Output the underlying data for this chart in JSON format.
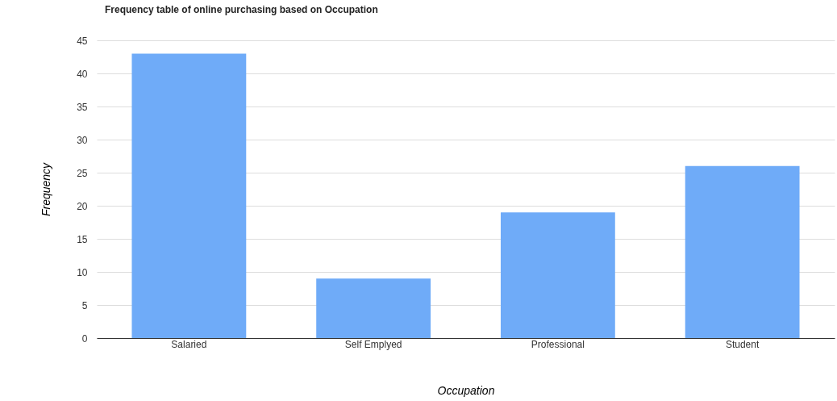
{
  "chart_data": {
    "type": "bar",
    "title": "Frequency table of online purchasing based on Occupation",
    "xlabel": "Occupation",
    "ylabel": "Frequency",
    "categories": [
      "Salaried",
      "Self Emplyed",
      "Professional",
      "Student"
    ],
    "values": [
      43,
      9,
      19,
      26
    ],
    "color": "#6fabf8",
    "ylim": [
      0,
      45
    ],
    "yticks": [
      0,
      5,
      10,
      15,
      20,
      25,
      30,
      35,
      40,
      45
    ],
    "grid": "y"
  }
}
